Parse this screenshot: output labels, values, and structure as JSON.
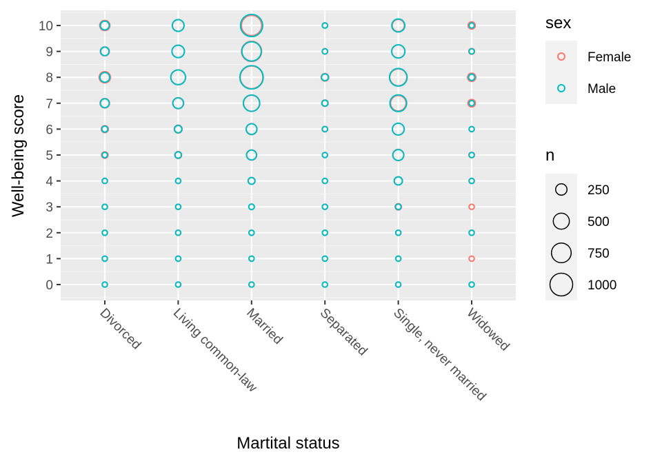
{
  "chart_data": {
    "type": "scatter",
    "xlabel": "Martital status",
    "ylabel": "Well-being score",
    "categories": [
      "Divorced",
      "Living common-law",
      "Married",
      "Separated",
      "Single, never married",
      "Widowed"
    ],
    "yticks": [
      0,
      1,
      2,
      3,
      4,
      5,
      6,
      7,
      8,
      9,
      10
    ],
    "ylim": [
      -0.6,
      10.6
    ],
    "grid": true,
    "legend_position": "right",
    "color_legend": {
      "title": "sex",
      "entries": [
        {
          "label": "Female",
          "color": "#F8766D"
        },
        {
          "label": "Male",
          "color": "#00BFC4"
        }
      ]
    },
    "size_legend": {
      "title": "n",
      "breaks": [
        250,
        500,
        750,
        1000
      ],
      "labels": [
        "250",
        "500",
        "750",
        "1000"
      ]
    },
    "series": [
      {
        "name": "Female",
        "color": "#F8766D",
        "points": [
          {
            "category": "Divorced",
            "score": 0,
            "n": 15
          },
          {
            "category": "Divorced",
            "score": 1,
            "n": 12
          },
          {
            "category": "Divorced",
            "score": 2,
            "n": 20
          },
          {
            "category": "Divorced",
            "score": 3,
            "n": 25
          },
          {
            "category": "Divorced",
            "score": 4,
            "n": 30
          },
          {
            "category": "Divorced",
            "score": 5,
            "n": 80
          },
          {
            "category": "Divorced",
            "score": 6,
            "n": 95
          },
          {
            "category": "Divorced",
            "score": 7,
            "n": 170
          },
          {
            "category": "Divorced",
            "score": 8,
            "n": 245
          },
          {
            "category": "Divorced",
            "score": 9,
            "n": 155
          },
          {
            "category": "Divorced",
            "score": 10,
            "n": 200
          },
          {
            "category": "Living common-law",
            "score": 0,
            "n": 10
          },
          {
            "category": "Living common-law",
            "score": 1,
            "n": 12
          },
          {
            "category": "Living common-law",
            "score": 2,
            "n": 15
          },
          {
            "category": "Living common-law",
            "score": 3,
            "n": 30
          },
          {
            "category": "Living common-law",
            "score": 4,
            "n": 40
          },
          {
            "category": "Living common-law",
            "score": 5,
            "n": 90
          },
          {
            "category": "Living common-law",
            "score": 6,
            "n": 120
          },
          {
            "category": "Living common-law",
            "score": 7,
            "n": 230
          },
          {
            "category": "Living common-law",
            "score": 8,
            "n": 420
          },
          {
            "category": "Living common-law",
            "score": 9,
            "n": 300
          },
          {
            "category": "Living common-law",
            "score": 10,
            "n": 260
          },
          {
            "category": "Married",
            "score": 0,
            "n": 10
          },
          {
            "category": "Married",
            "score": 1,
            "n": 20
          },
          {
            "category": "Married",
            "score": 2,
            "n": 30
          },
          {
            "category": "Married",
            "score": 3,
            "n": 60
          },
          {
            "category": "Married",
            "score": 4,
            "n": 90
          },
          {
            "category": "Married",
            "score": 5,
            "n": 200
          },
          {
            "category": "Married",
            "score": 6,
            "n": 230
          },
          {
            "category": "Married",
            "score": 7,
            "n": 500
          },
          {
            "category": "Married",
            "score": 8,
            "n": 1000
          },
          {
            "category": "Married",
            "score": 9,
            "n": 780
          },
          {
            "category": "Married",
            "score": 10,
            "n": 800
          },
          {
            "category": "Separated",
            "score": 0,
            "n": 12
          },
          {
            "category": "Separated",
            "score": 1,
            "n": 15
          },
          {
            "category": "Separated",
            "score": 2,
            "n": 15
          },
          {
            "category": "Separated",
            "score": 3,
            "n": 20
          },
          {
            "category": "Separated",
            "score": 4,
            "n": 25
          },
          {
            "category": "Separated",
            "score": 5,
            "n": 50
          },
          {
            "category": "Separated",
            "score": 6,
            "n": 60
          },
          {
            "category": "Separated",
            "score": 7,
            "n": 80
          },
          {
            "category": "Separated",
            "score": 8,
            "n": 110
          },
          {
            "category": "Separated",
            "score": 9,
            "n": 60
          },
          {
            "category": "Separated",
            "score": 10,
            "n": 55
          },
          {
            "category": "Single, never married",
            "score": 0,
            "n": 35
          },
          {
            "category": "Single, never married",
            "score": 1,
            "n": 30
          },
          {
            "category": "Single, never married",
            "score": 2,
            "n": 50
          },
          {
            "category": "Single, never married",
            "score": 3,
            "n": 75
          },
          {
            "category": "Single, never married",
            "score": 4,
            "n": 130
          },
          {
            "category": "Single, never married",
            "score": 5,
            "n": 240
          },
          {
            "category": "Single, never married",
            "score": 6,
            "n": 270
          },
          {
            "category": "Single, never married",
            "score": 7,
            "n": 470
          },
          {
            "category": "Single, never married",
            "score": 8,
            "n": 560
          },
          {
            "category": "Single, never married",
            "score": 9,
            "n": 330
          },
          {
            "category": "Single, never married",
            "score": 10,
            "n": 290
          },
          {
            "category": "Widowed",
            "score": 0,
            "n": 8
          },
          {
            "category": "Widowed",
            "score": 1,
            "n": 10
          },
          {
            "category": "Widowed",
            "score": 2,
            "n": 12
          },
          {
            "category": "Widowed",
            "score": 3,
            "n": 20
          },
          {
            "category": "Widowed",
            "score": 4,
            "n": 30
          },
          {
            "category": "Widowed",
            "score": 5,
            "n": 60
          },
          {
            "category": "Widowed",
            "score": 6,
            "n": 50
          },
          {
            "category": "Widowed",
            "score": 7,
            "n": 110
          },
          {
            "category": "Widowed",
            "score": 8,
            "n": 130
          },
          {
            "category": "Widowed",
            "score": 9,
            "n": 65
          },
          {
            "category": "Widowed",
            "score": 10,
            "n": 100
          }
        ]
      },
      {
        "name": "Male",
        "color": "#00BFC4",
        "points": [
          {
            "category": "Divorced",
            "score": 0,
            "n": 10
          },
          {
            "category": "Divorced",
            "score": 1,
            "n": 10
          },
          {
            "category": "Divorced",
            "score": 2,
            "n": 12
          },
          {
            "category": "Divorced",
            "score": 3,
            "n": 15
          },
          {
            "category": "Divorced",
            "score": 4,
            "n": 20
          },
          {
            "category": "Divorced",
            "score": 5,
            "n": 55
          },
          {
            "category": "Divorced",
            "score": 6,
            "n": 70
          },
          {
            "category": "Divorced",
            "score": 7,
            "n": 150
          },
          {
            "category": "Divorced",
            "score": 8,
            "n": 180
          },
          {
            "category": "Divorced",
            "score": 9,
            "n": 140
          },
          {
            "category": "Divorced",
            "score": 10,
            "n": 150
          },
          {
            "category": "Living common-law",
            "score": 0,
            "n": 10
          },
          {
            "category": "Living common-law",
            "score": 1,
            "n": 12
          },
          {
            "category": "Living common-law",
            "score": 2,
            "n": 12
          },
          {
            "category": "Living common-law",
            "score": 3,
            "n": 25
          },
          {
            "category": "Living common-law",
            "score": 4,
            "n": 30
          },
          {
            "category": "Living common-law",
            "score": 5,
            "n": 80
          },
          {
            "category": "Living common-law",
            "score": 6,
            "n": 105
          },
          {
            "category": "Living common-law",
            "score": 7,
            "n": 220
          },
          {
            "category": "Living common-law",
            "score": 8,
            "n": 420
          },
          {
            "category": "Living common-law",
            "score": 9,
            "n": 300
          },
          {
            "category": "Living common-law",
            "score": 10,
            "n": 270
          },
          {
            "category": "Married",
            "score": 0,
            "n": 10
          },
          {
            "category": "Married",
            "score": 1,
            "n": 10
          },
          {
            "category": "Married",
            "score": 2,
            "n": 25
          },
          {
            "category": "Married",
            "score": 3,
            "n": 60
          },
          {
            "category": "Married",
            "score": 4,
            "n": 90
          },
          {
            "category": "Married",
            "score": 5,
            "n": 190
          },
          {
            "category": "Married",
            "score": 6,
            "n": 220
          },
          {
            "category": "Married",
            "score": 7,
            "n": 520
          },
          {
            "category": "Married",
            "score": 8,
            "n": 1050
          },
          {
            "category": "Married",
            "score": 9,
            "n": 720
          },
          {
            "category": "Married",
            "score": 10,
            "n": 950
          },
          {
            "category": "Separated",
            "score": 0,
            "n": 10
          },
          {
            "category": "Separated",
            "score": 1,
            "n": 10
          },
          {
            "category": "Separated",
            "score": 2,
            "n": 12
          },
          {
            "category": "Separated",
            "score": 3,
            "n": 15
          },
          {
            "category": "Separated",
            "score": 4,
            "n": 20
          },
          {
            "category": "Separated",
            "score": 5,
            "n": 40
          },
          {
            "category": "Separated",
            "score": 6,
            "n": 50
          },
          {
            "category": "Separated",
            "score": 7,
            "n": 70
          },
          {
            "category": "Separated",
            "score": 8,
            "n": 90
          },
          {
            "category": "Separated",
            "score": 9,
            "n": 55
          },
          {
            "category": "Separated",
            "score": 10,
            "n": 55
          },
          {
            "category": "Single, never married",
            "score": 0,
            "n": 20
          },
          {
            "category": "Single, never married",
            "score": 1,
            "n": 15
          },
          {
            "category": "Single, never married",
            "score": 2,
            "n": 45
          },
          {
            "category": "Single, never married",
            "score": 3,
            "n": 60
          },
          {
            "category": "Single, never married",
            "score": 4,
            "n": 130
          },
          {
            "category": "Single, never married",
            "score": 5,
            "n": 230
          },
          {
            "category": "Single, never married",
            "score": 6,
            "n": 270
          },
          {
            "category": "Single, never married",
            "score": 7,
            "n": 540
          },
          {
            "category": "Single, never married",
            "score": 8,
            "n": 600
          },
          {
            "category": "Single, never married",
            "score": 9,
            "n": 340
          },
          {
            "category": "Single, never married",
            "score": 10,
            "n": 330
          },
          {
            "category": "Widowed",
            "score": 0,
            "n": 8
          },
          {
            "category": "Widowed",
            "score": 2,
            "n": 10
          },
          {
            "category": "Widowed",
            "score": 4,
            "n": 15
          },
          {
            "category": "Widowed",
            "score": 5,
            "n": 25
          },
          {
            "category": "Widowed",
            "score": 6,
            "n": 30
          },
          {
            "category": "Widowed",
            "score": 7,
            "n": 55
          },
          {
            "category": "Widowed",
            "score": 8,
            "n": 75
          },
          {
            "category": "Widowed",
            "score": 9,
            "n": 40
          },
          {
            "category": "Widowed",
            "score": 10,
            "n": 45
          }
        ]
      }
    ]
  }
}
